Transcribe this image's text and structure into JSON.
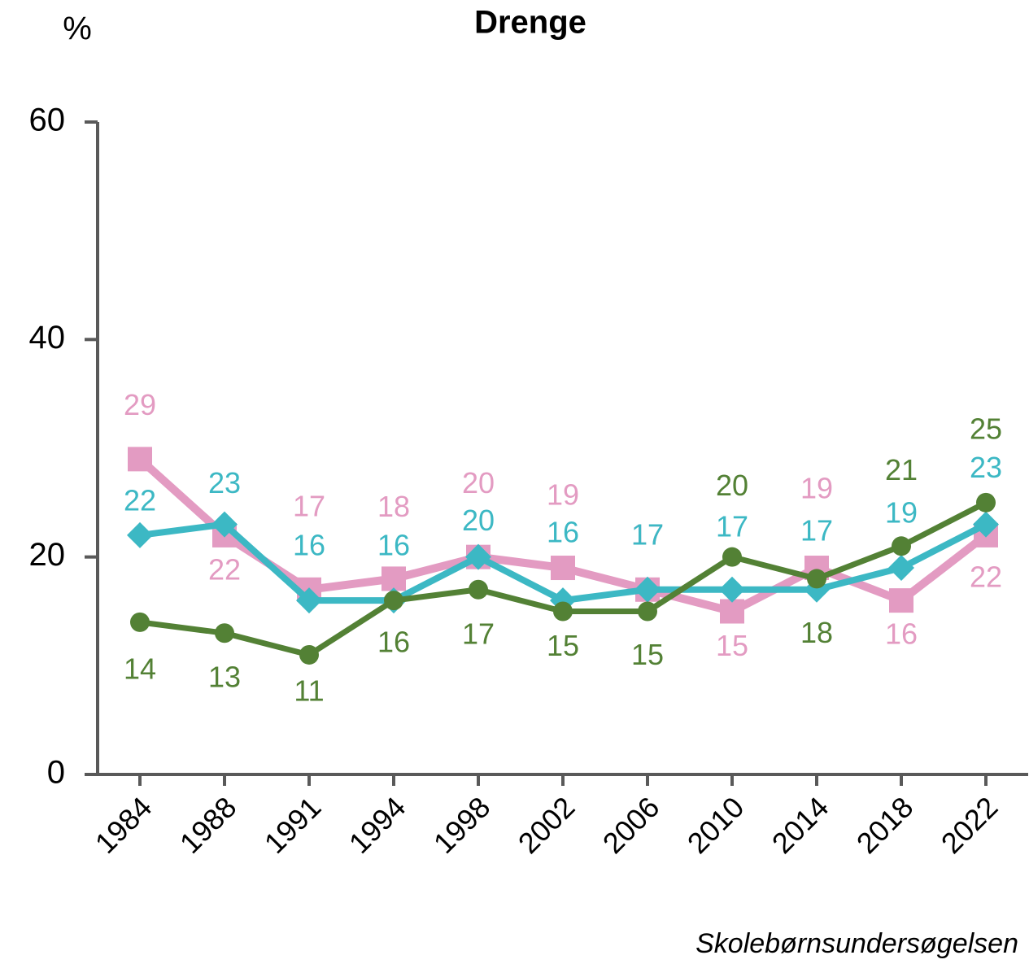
{
  "chart_data": {
    "type": "line",
    "title": "Drenge",
    "ylabel": "%",
    "source": "Skolebørnsundersøgelsen",
    "categories": [
      "1984",
      "1988",
      "1991",
      "1994",
      "1998",
      "2002",
      "2006",
      "2010",
      "2014",
      "2018",
      "2022"
    ],
    "series": [
      {
        "color": "#e39bc2",
        "marker": "square",
        "values": [
          29,
          22,
          17,
          18,
          20,
          19,
          17,
          15,
          19,
          16,
          22
        ]
      },
      {
        "color": "#3cb8c4",
        "marker": "diamond",
        "values": [
          22,
          23,
          16,
          16,
          20,
          16,
          17,
          17,
          17,
          19,
          23
        ]
      },
      {
        "color": "#538135",
        "marker": "circle",
        "values": [
          14,
          13,
          11,
          16,
          17,
          15,
          15,
          20,
          18,
          21,
          25
        ]
      }
    ],
    "ylim": [
      0,
      60
    ],
    "yticks": [
      0,
      20,
      40,
      60
    ],
    "grid": false
  }
}
